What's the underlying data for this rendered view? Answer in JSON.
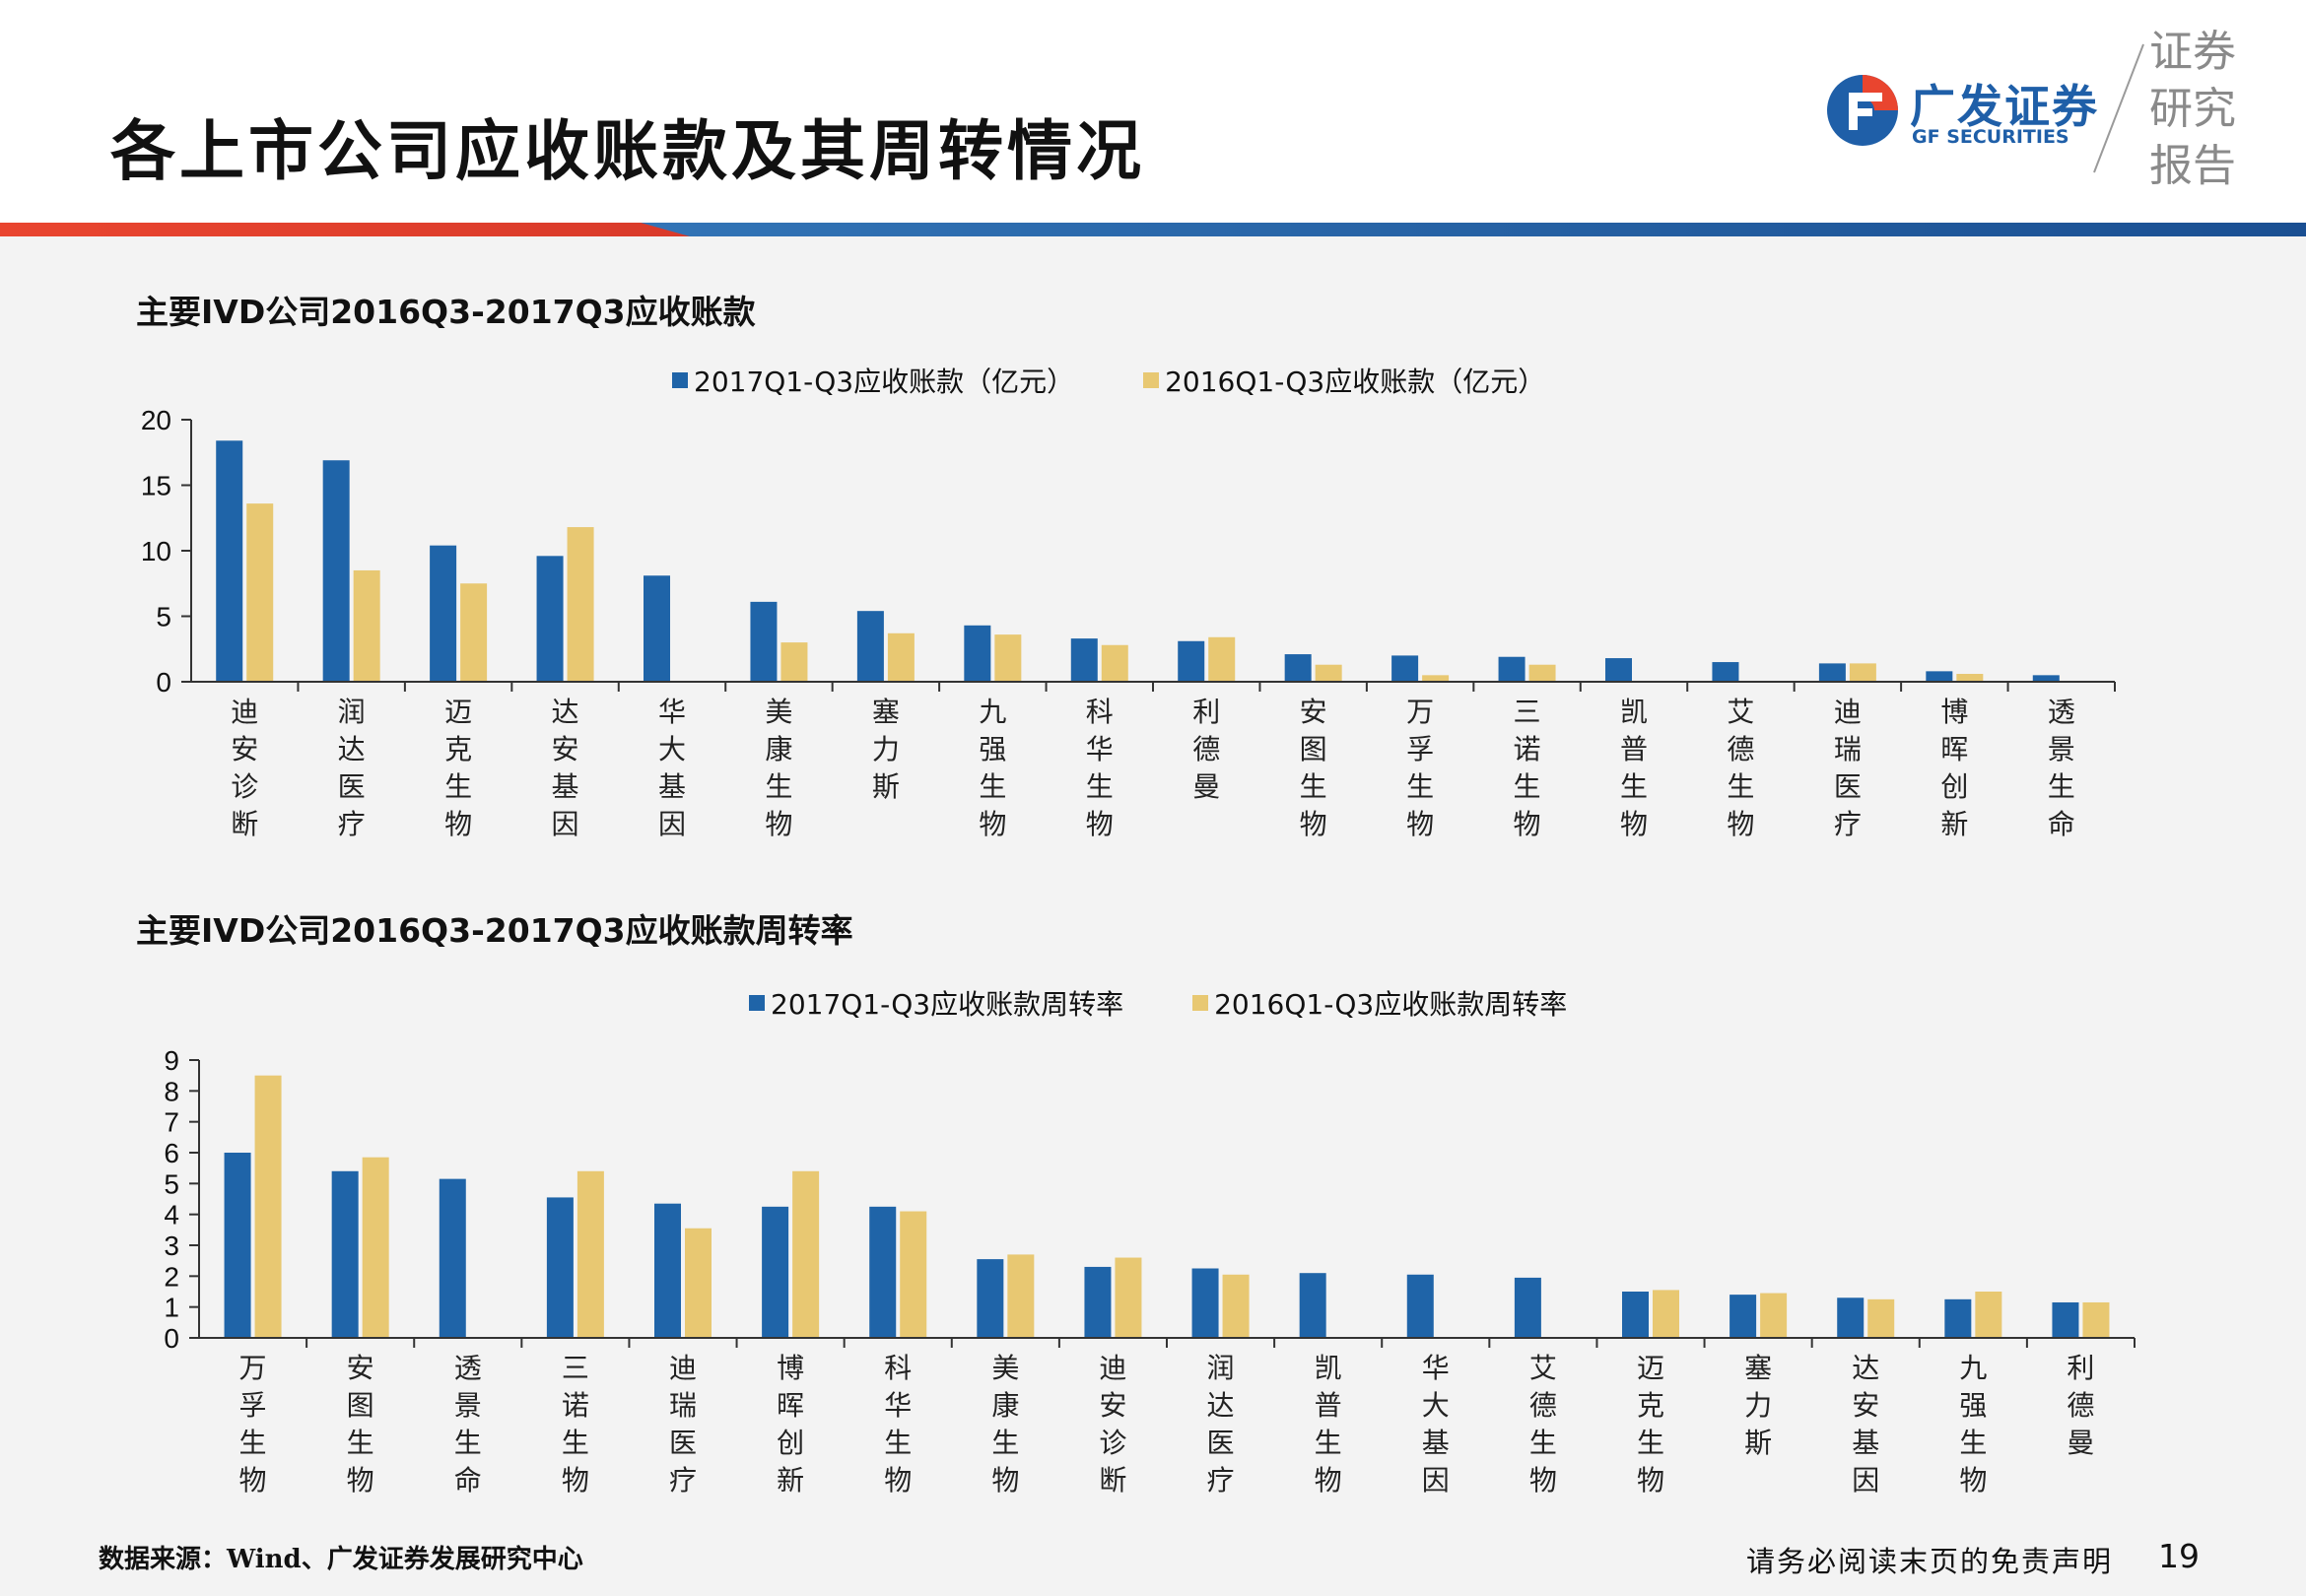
{
  "header": {
    "title": "各上市公司应收账款及其周转情况",
    "logo_cn": "广发证券",
    "logo_en": "GF SECURITIES",
    "report_tag": [
      "证券",
      "研究",
      "报告"
    ]
  },
  "colors": {
    "series_2017": "#1f64a8",
    "series_2016": "#e8c872",
    "axis": "#333333",
    "divider_left": "#e9452f",
    "divider_right": "#1f5aa0"
  },
  "chart_data": [
    {
      "type": "bar",
      "title": "主要IVD公司2016Q3-2017Q3应收账款",
      "categories": [
        "迪安诊断",
        "润达医疗",
        "迈克生物",
        "达安基因",
        "华大基因",
        "美康生物",
        "塞力斯",
        "九强生物",
        "科华生物",
        "利德曼",
        "安图生物",
        "万孚生物",
        "三诺生物",
        "凯普生物",
        "艾德生物",
        "迪瑞医疗",
        "博晖创新",
        "透景生命"
      ],
      "series": [
        {
          "name": "2017Q1-Q3应收账款（亿元）",
          "values": [
            18.4,
            16.9,
            10.4,
            9.6,
            8.1,
            6.1,
            5.4,
            4.3,
            3.3,
            3.1,
            2.1,
            2.0,
            1.9,
            1.8,
            1.5,
            1.4,
            0.8,
            0.5
          ]
        },
        {
          "name": "2016Q1-Q3应收账款（亿元）",
          "values": [
            13.6,
            8.5,
            7.5,
            11.8,
            0,
            3.0,
            3.7,
            3.6,
            2.8,
            3.4,
            1.3,
            0.5,
            1.3,
            0,
            0,
            1.4,
            0.6,
            0
          ]
        }
      ],
      "ylim": [
        0,
        20
      ],
      "yticks": [
        0,
        5,
        10,
        15,
        20
      ],
      "xlabel": "",
      "ylabel": "",
      "legend": "top-center",
      "grid": false
    },
    {
      "type": "bar",
      "title": "主要IVD公司2016Q3-2017Q3应收账款周转率",
      "categories": [
        "万孚生物",
        "安图生物",
        "透景生命",
        "三诺生物",
        "迪瑞医疗",
        "博晖创新",
        "科华生物",
        "美康生物",
        "迪安诊断",
        "润达医疗",
        "凯普生物",
        "华大基因",
        "艾德生物",
        "迈克生物",
        "塞力斯",
        "达安基因",
        "九强生物",
        "利德曼"
      ],
      "series": [
        {
          "name": "2017Q1-Q3应收账款周转率",
          "values": [
            6.0,
            5.4,
            5.15,
            4.55,
            4.35,
            4.25,
            4.25,
            2.55,
            2.3,
            2.25,
            2.1,
            2.05,
            1.95,
            1.5,
            1.4,
            1.3,
            1.25,
            1.15
          ]
        },
        {
          "name": "2016Q1-Q3应收账款周转率",
          "values": [
            8.5,
            5.85,
            0,
            5.4,
            3.55,
            5.4,
            4.1,
            2.7,
            2.6,
            2.05,
            0,
            0,
            0,
            1.55,
            1.45,
            1.25,
            1.5,
            1.15
          ]
        }
      ],
      "ylim": [
        0,
        9
      ],
      "yticks": [
        0,
        1,
        2,
        3,
        4,
        5,
        6,
        7,
        8,
        9
      ],
      "xlabel": "",
      "ylabel": "",
      "legend": "top-center",
      "grid": false
    }
  ],
  "footer": {
    "source": "数据来源：Wind、广发证券发展研究中心",
    "disclaimer": "请务必阅读末页的免责声明",
    "page_number": "19"
  }
}
